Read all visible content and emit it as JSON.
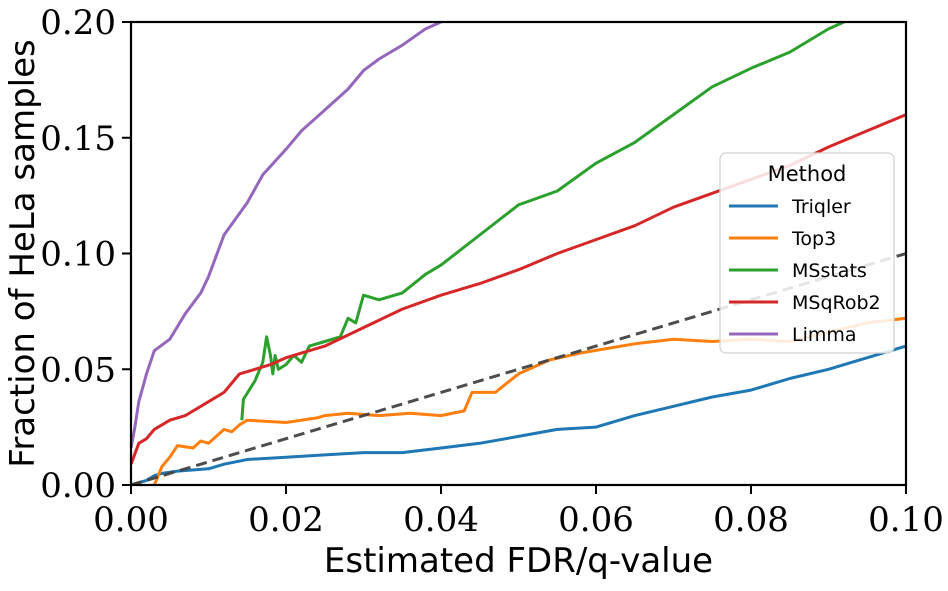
{
  "chart_data": {
    "type": "line",
    "xlabel": "Estimated FDR/q-value",
    "ylabel": "Fraction of HeLa samples",
    "xlim": [
      0.0,
      0.1
    ],
    "ylim": [
      0.0,
      0.2
    ],
    "xticks": [
      "0.00",
      "0.02",
      "0.04",
      "0.06",
      "0.08",
      "0.10"
    ],
    "yticks": [
      "0.00",
      "0.05",
      "0.10",
      "0.15",
      "0.20"
    ],
    "grid": false,
    "legend": {
      "title": "Method",
      "position": "right"
    },
    "reference_line": {
      "style": "dashed",
      "color": "#444444",
      "x": [
        0.0,
        0.1
      ],
      "y": [
        0.0,
        0.1
      ]
    },
    "series": [
      {
        "name": "Triqler",
        "color": "#1f77b4",
        "x": [
          0.0,
          0.001,
          0.002,
          0.003,
          0.004,
          0.006,
          0.01,
          0.012,
          0.015,
          0.02,
          0.025,
          0.03,
          0.035,
          0.04,
          0.045,
          0.05,
          0.055,
          0.06,
          0.065,
          0.07,
          0.075,
          0.08,
          0.085,
          0.09,
          0.095,
          0.1
        ],
        "y": [
          0.0,
          0.001,
          0.002,
          0.004,
          0.005,
          0.006,
          0.007,
          0.009,
          0.011,
          0.012,
          0.013,
          0.014,
          0.014,
          0.016,
          0.018,
          0.021,
          0.024,
          0.025,
          0.03,
          0.034,
          0.038,
          0.041,
          0.046,
          0.05,
          0.055,
          0.06
        ]
      },
      {
        "name": "Top3",
        "color": "#ff7f0e",
        "x": [
          0.003,
          0.004,
          0.005,
          0.006,
          0.008,
          0.009,
          0.01,
          0.011,
          0.012,
          0.013,
          0.014,
          0.015,
          0.02,
          0.024,
          0.025,
          0.028,
          0.032,
          0.036,
          0.04,
          0.043,
          0.044,
          0.047,
          0.05,
          0.054,
          0.058,
          0.065,
          0.07,
          0.075,
          0.08,
          0.085,
          0.09,
          0.095,
          0.1
        ],
        "y": [
          0.0,
          0.008,
          0.012,
          0.017,
          0.016,
          0.019,
          0.018,
          0.021,
          0.024,
          0.023,
          0.026,
          0.028,
          0.027,
          0.029,
          0.03,
          0.031,
          0.03,
          0.031,
          0.03,
          0.032,
          0.04,
          0.04,
          0.048,
          0.054,
          0.057,
          0.061,
          0.063,
          0.062,
          0.063,
          0.062,
          0.066,
          0.07,
          0.072
        ]
      },
      {
        "name": "MSstats",
        "color": "#2ca02c",
        "x": [
          0.0143,
          0.0145,
          0.016,
          0.017,
          0.0175,
          0.018,
          0.0183,
          0.0186,
          0.019,
          0.02,
          0.021,
          0.022,
          0.023,
          0.025,
          0.027,
          0.028,
          0.029,
          0.03,
          0.032,
          0.035,
          0.038,
          0.04,
          0.045,
          0.05,
          0.055,
          0.06,
          0.065,
          0.07,
          0.075,
          0.08,
          0.085,
          0.09,
          0.092
        ],
        "y": [
          0.028,
          0.037,
          0.045,
          0.053,
          0.064,
          0.056,
          0.048,
          0.056,
          0.05,
          0.052,
          0.056,
          0.053,
          0.06,
          0.062,
          0.064,
          0.072,
          0.07,
          0.082,
          0.08,
          0.083,
          0.091,
          0.095,
          0.108,
          0.121,
          0.127,
          0.139,
          0.148,
          0.16,
          0.172,
          0.18,
          0.187,
          0.197,
          0.2
        ]
      },
      {
        "name": "MSqRob2",
        "color": "#d62728",
        "x": [
          0.0,
          0.001,
          0.002,
          0.003,
          0.005,
          0.007,
          0.01,
          0.012,
          0.014,
          0.016,
          0.018,
          0.02,
          0.025,
          0.03,
          0.035,
          0.04,
          0.045,
          0.05,
          0.055,
          0.06,
          0.065,
          0.07,
          0.075,
          0.08,
          0.085,
          0.09,
          0.095,
          0.1
        ],
        "y": [
          0.009,
          0.018,
          0.02,
          0.024,
          0.028,
          0.03,
          0.036,
          0.04,
          0.048,
          0.05,
          0.052,
          0.055,
          0.06,
          0.068,
          0.076,
          0.082,
          0.087,
          0.093,
          0.1,
          0.106,
          0.112,
          0.12,
          0.126,
          0.132,
          0.138,
          0.146,
          0.153,
          0.16
        ]
      },
      {
        "name": "Limma",
        "color": "#9467bd",
        "x": [
          0.0,
          0.0005,
          0.001,
          0.002,
          0.003,
          0.005,
          0.007,
          0.009,
          0.01,
          0.012,
          0.015,
          0.017,
          0.02,
          0.022,
          0.025,
          0.028,
          0.03,
          0.032,
          0.035,
          0.038,
          0.04
        ],
        "y": [
          0.016,
          0.025,
          0.036,
          0.048,
          0.058,
          0.063,
          0.074,
          0.083,
          0.09,
          0.108,
          0.122,
          0.134,
          0.145,
          0.153,
          0.162,
          0.171,
          0.179,
          0.184,
          0.19,
          0.197,
          0.2
        ]
      }
    ]
  }
}
